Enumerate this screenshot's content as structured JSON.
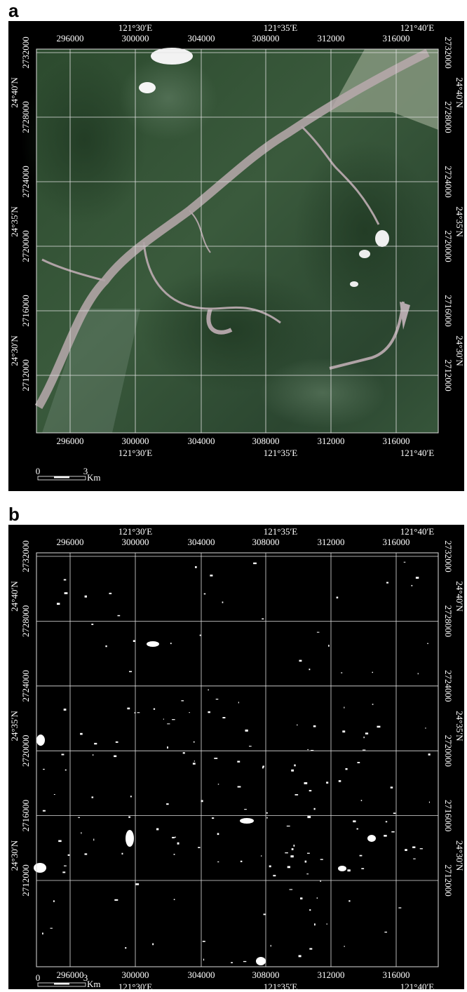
{
  "panels": [
    {
      "label": "a"
    },
    {
      "label": "b"
    }
  ],
  "grid": {
    "longitudes": [
      "121°30′E",
      "121°35′E",
      "121°40′E"
    ],
    "latitudes": [
      "24°40′N",
      "24°35′N",
      "24°30′N"
    ],
    "eastings": [
      "296000",
      "300000",
      "304000",
      "308000",
      "312000",
      "316000"
    ],
    "northings": [
      "2732000",
      "2728000",
      "2724000",
      "2720000",
      "2716000",
      "2712000"
    ]
  },
  "scale_bar": {
    "start": "0",
    "end": "3",
    "unit": "Km"
  }
}
